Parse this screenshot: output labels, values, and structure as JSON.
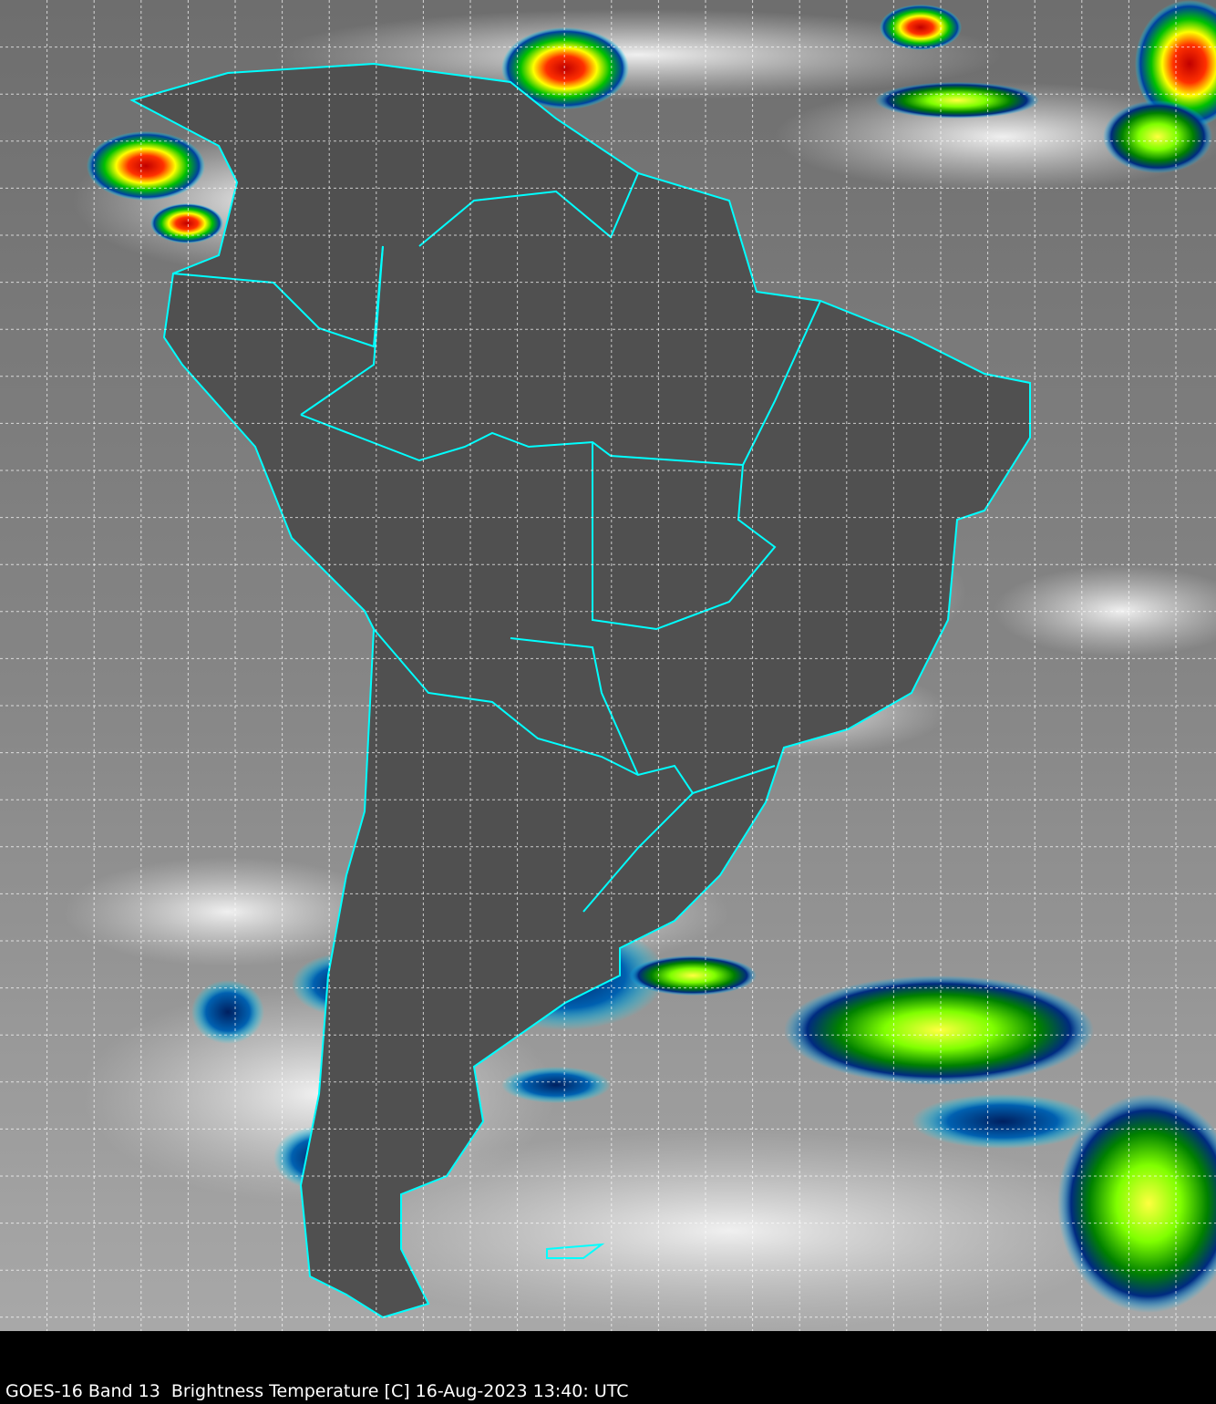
{
  "caption": "GOES-16 Band 13  Brightness Temperature [C] 16-Aug-2023 13:40: UTC",
  "colors": {
    "background": "#000000",
    "land_clear": "#555555",
    "ocean_clear": "#7a7a7a",
    "cloud_cold": "#e8e8e8",
    "coastline": "#00ffff",
    "grid": "#ffffff",
    "colormap": [
      "#00e5ff",
      "#00a0ff",
      "#002a80",
      "#00c000",
      "#90ff00",
      "#ffff00",
      "#ff8000",
      "#ff0000",
      "#800000"
    ]
  }
}
